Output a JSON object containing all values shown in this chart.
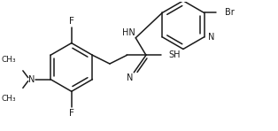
{
  "bg_color": "#ffffff",
  "line_color": "#1a1a1a",
  "line_width": 1.1,
  "font_size": 7.0,
  "figsize": [
    3.14,
    1.48
  ],
  "dpi": 100,
  "xlim": [
    0,
    314
  ],
  "ylim": [
    0,
    148
  ]
}
